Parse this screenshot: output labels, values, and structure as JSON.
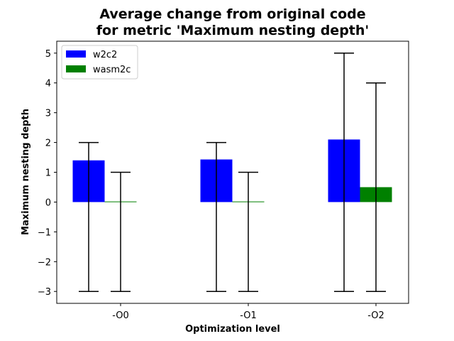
{
  "chart_data": {
    "type": "bar",
    "title_line1": "Average change from original code",
    "title_line2": "for metric 'Maximum nesting depth'",
    "xlabel": "Optimization level",
    "ylabel": "Maximum nesting depth",
    "categories": [
      "-O0",
      "-O1",
      "-O2"
    ],
    "ylim": [
      -3.4,
      5.4
    ],
    "yticks": [
      -3,
      -2,
      -1,
      0,
      1,
      2,
      3,
      4,
      5
    ],
    "ytick_labels": [
      "−3",
      "−2",
      "−1",
      "0",
      "1",
      "2",
      "3",
      "4",
      "5"
    ],
    "legend_position": "upper-left",
    "series": [
      {
        "name": "w2c2",
        "color": "#0000ff",
        "values": [
          1.4,
          1.43,
          2.1
        ],
        "err_low": [
          -3,
          -3,
          -3
        ],
        "err_high": [
          2,
          2,
          5
        ]
      },
      {
        "name": "wasm2c",
        "color": "#008000",
        "values": [
          0.02,
          0.02,
          0.5
        ],
        "err_low": [
          -3,
          -3,
          -3
        ],
        "err_high": [
          1,
          1,
          4
        ]
      }
    ]
  }
}
